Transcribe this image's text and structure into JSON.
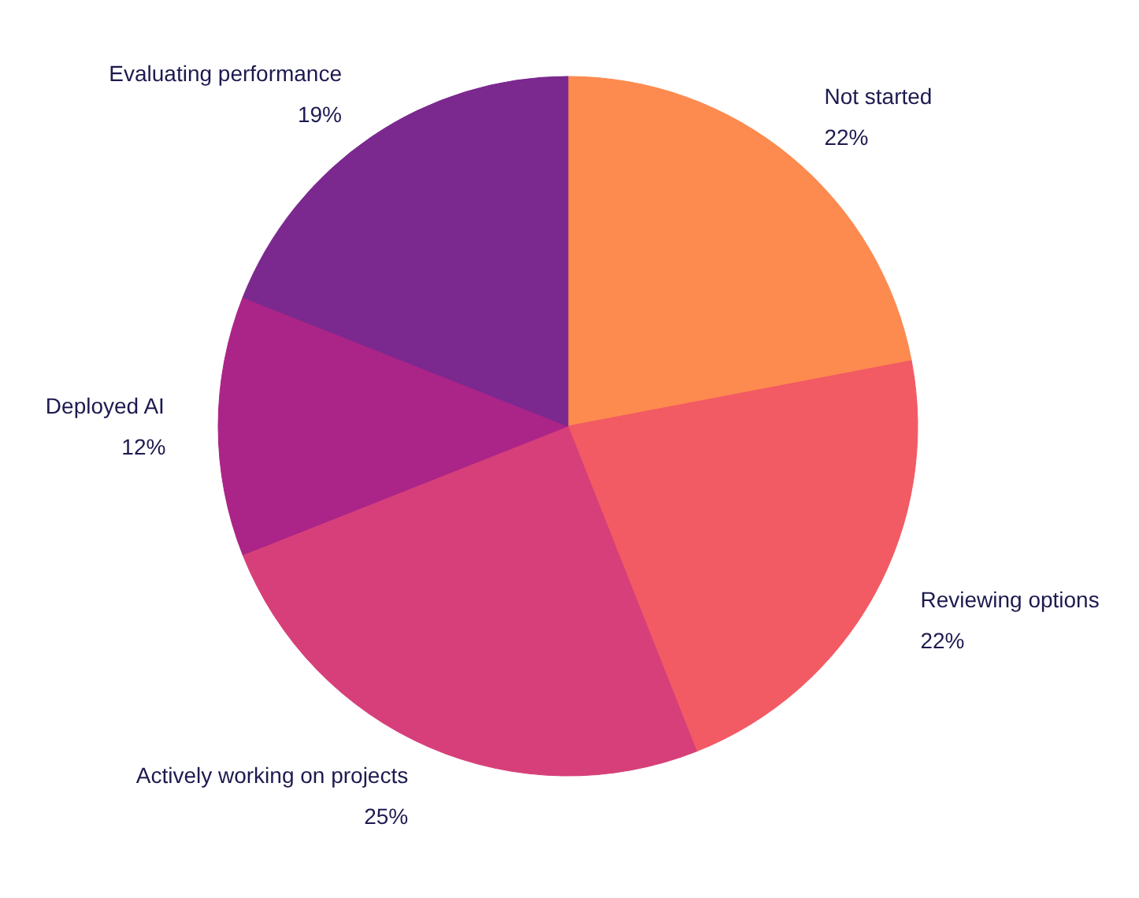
{
  "chart_data": {
    "type": "pie",
    "categories": [
      "Not started",
      "Reviewing options",
      "Actively working on projects",
      "Deployed AI",
      "Evaluating performance"
    ],
    "values": [
      22,
      22,
      25,
      12,
      19
    ],
    "colors": [
      "#fd8a4f",
      "#f25a64",
      "#d63f7a",
      "#ab2487",
      "#7b288f"
    ],
    "value_labels": [
      "22%",
      "22%",
      "25%",
      "12%",
      "19%"
    ]
  }
}
